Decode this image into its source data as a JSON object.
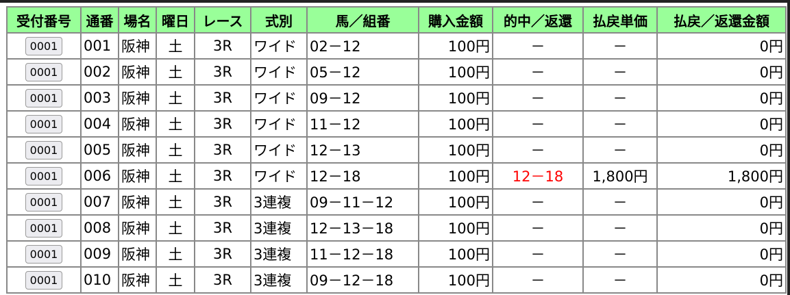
{
  "headers": [
    "受付番号",
    "通番",
    "場名",
    "曜日",
    "レース",
    "式別",
    "馬／組番",
    "購入金額",
    "的中／返還",
    "払戻単価",
    "払戻／返還金額"
  ],
  "rows": [
    {
      "receipt": "0001",
      "no": "001",
      "venue": "阪神",
      "day": "土",
      "race": "3R",
      "type": "ワイド",
      "combo": "02－12",
      "amount": "100円",
      "hit": "－",
      "unit": "－",
      "payout": "0円"
    },
    {
      "receipt": "0001",
      "no": "002",
      "venue": "阪神",
      "day": "土",
      "race": "3R",
      "type": "ワイド",
      "combo": "05－12",
      "amount": "100円",
      "hit": "－",
      "unit": "－",
      "payout": "0円"
    },
    {
      "receipt": "0001",
      "no": "003",
      "venue": "阪神",
      "day": "土",
      "race": "3R",
      "type": "ワイド",
      "combo": "09－12",
      "amount": "100円",
      "hit": "－",
      "unit": "－",
      "payout": "0円"
    },
    {
      "receipt": "0001",
      "no": "004",
      "venue": "阪神",
      "day": "土",
      "race": "3R",
      "type": "ワイド",
      "combo": "11－12",
      "amount": "100円",
      "hit": "－",
      "unit": "－",
      "payout": "0円"
    },
    {
      "receipt": "0001",
      "no": "005",
      "venue": "阪神",
      "day": "土",
      "race": "3R",
      "type": "ワイド",
      "combo": "12－13",
      "amount": "100円",
      "hit": "－",
      "unit": "－",
      "payout": "0円"
    },
    {
      "receipt": "0001",
      "no": "006",
      "venue": "阪神",
      "day": "土",
      "race": "3R",
      "type": "ワイド",
      "combo": "12－18",
      "amount": "100円",
      "hit": "12－18",
      "unit": "1,800円",
      "payout": "1,800円",
      "is_hit": true
    },
    {
      "receipt": "0001",
      "no": "007",
      "venue": "阪神",
      "day": "土",
      "race": "3R",
      "type": "3連複",
      "combo": "09－11－12",
      "amount": "100円",
      "hit": "－",
      "unit": "－",
      "payout": "0円"
    },
    {
      "receipt": "0001",
      "no": "008",
      "venue": "阪神",
      "day": "土",
      "race": "3R",
      "type": "3連複",
      "combo": "12－13－18",
      "amount": "100円",
      "hit": "－",
      "unit": "－",
      "payout": "0円"
    },
    {
      "receipt": "0001",
      "no": "009",
      "venue": "阪神",
      "day": "土",
      "race": "3R",
      "type": "3連複",
      "combo": "11－12－18",
      "amount": "100円",
      "hit": "－",
      "unit": "－",
      "payout": "0円"
    },
    {
      "receipt": "0001",
      "no": "010",
      "venue": "阪神",
      "day": "土",
      "race": "3R",
      "type": "3連複",
      "combo": "09－12－18",
      "amount": "100円",
      "hit": "－",
      "unit": "－",
      "payout": "0円"
    }
  ],
  "colors": {
    "header_bg": "#99ff99",
    "hit_text": "#ff0000"
  }
}
